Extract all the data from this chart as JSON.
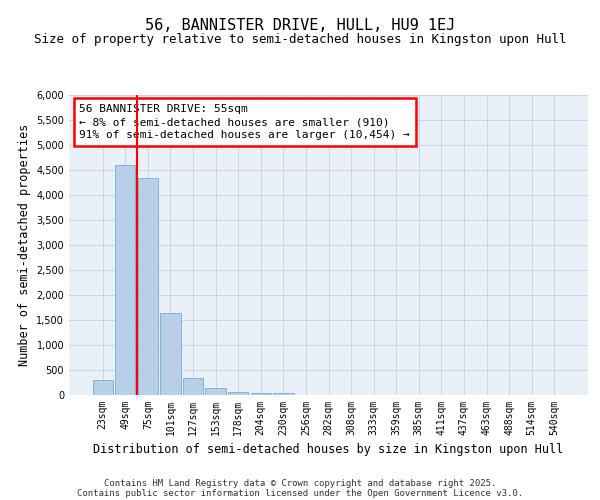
{
  "title": "56, BANNISTER DRIVE, HULL, HU9 1EJ",
  "subtitle": "Size of property relative to semi-detached houses in Kingston upon Hull",
  "xlabel": "Distribution of semi-detached houses by size in Kingston upon Hull",
  "ylabel": "Number of semi-detached properties",
  "categories": [
    "23sqm",
    "49sqm",
    "75sqm",
    "101sqm",
    "127sqm",
    "153sqm",
    "178sqm",
    "204sqm",
    "230sqm",
    "256sqm",
    "282sqm",
    "308sqm",
    "333sqm",
    "359sqm",
    "385sqm",
    "411sqm",
    "437sqm",
    "463sqm",
    "488sqm",
    "514sqm",
    "540sqm"
  ],
  "values": [
    300,
    4600,
    4350,
    1650,
    340,
    150,
    70,
    50,
    40,
    0,
    0,
    0,
    0,
    0,
    0,
    0,
    0,
    0,
    0,
    0,
    0
  ],
  "bar_color": "#b8cfe8",
  "bar_edge_color": "#7aaad0",
  "grid_color": "#c8d4e8",
  "background_color": "#eaf0f8",
  "property_line_x": 1.5,
  "property_line_color": "red",
  "annotation_text": "56 BANNISTER DRIVE: 55sqm\n← 8% of semi-detached houses are smaller (910)\n91% of semi-detached houses are larger (10,454) →",
  "ylim": [
    0,
    6000
  ],
  "yticks": [
    0,
    500,
    1000,
    1500,
    2000,
    2500,
    3000,
    3500,
    4000,
    4500,
    5000,
    5500,
    6000
  ],
  "footnote_line1": "Contains HM Land Registry data © Crown copyright and database right 2025.",
  "footnote_line2": "Contains public sector information licensed under the Open Government Licence v3.0.",
  "title_fontsize": 11,
  "subtitle_fontsize": 9,
  "label_fontsize": 8.5,
  "tick_fontsize": 7,
  "annot_fontsize": 8,
  "footnote_fontsize": 6.5
}
